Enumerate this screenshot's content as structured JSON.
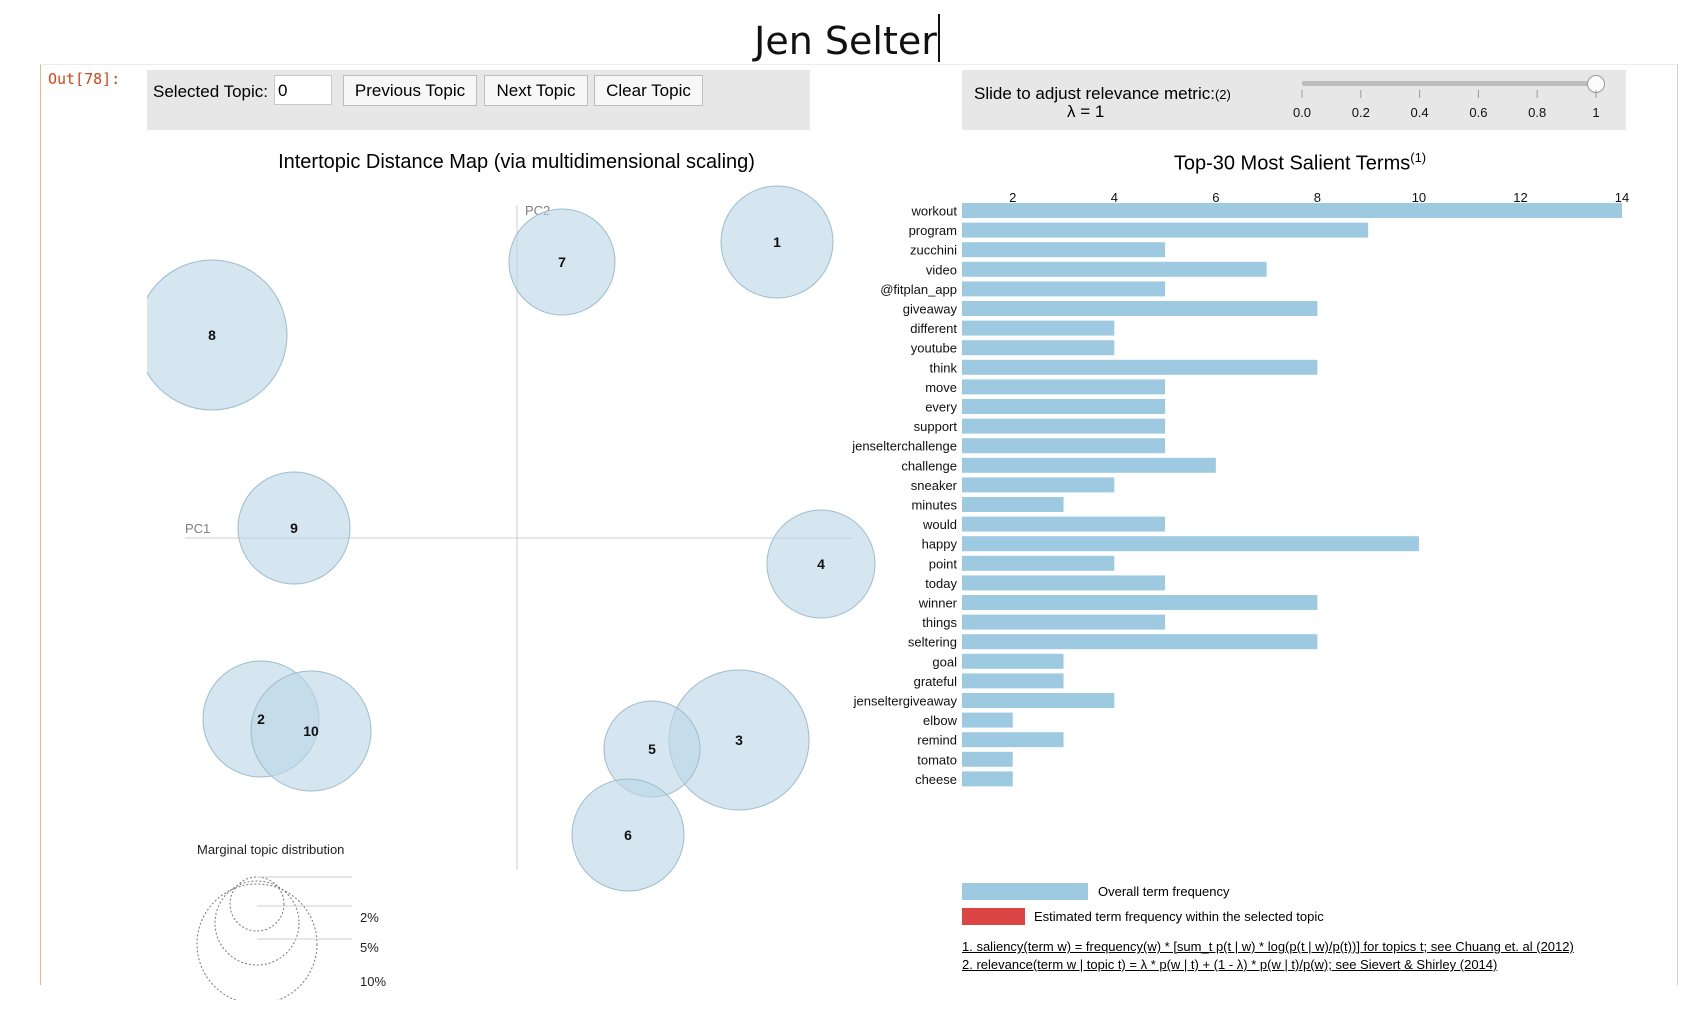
{
  "document_title": "Jen Selter",
  "cell_prompt": "Out[78]:",
  "toolbar": {
    "selected_topic_label": "Selected Topic:",
    "selected_topic_value": "0",
    "previous_label": "Previous Topic",
    "next_label": "Next Topic",
    "clear_label": "Clear Topic"
  },
  "slider": {
    "label": "Slide to adjust relevance metric:",
    "footnote_marker": "(2)",
    "lambda_text": "λ = 1",
    "value": 1,
    "ticks": [
      "0.0",
      "0.2",
      "0.4",
      "0.6",
      "0.8",
      "1"
    ]
  },
  "map": {
    "title": "Intertopic Distance Map (via multidimensional scaling)",
    "pc1_label": "PC1",
    "pc2_label": "PC2",
    "topics": [
      "1",
      "2",
      "3",
      "4",
      "5",
      "6",
      "7",
      "8",
      "9",
      "10"
    ],
    "legend_title": "Marginal topic distribution",
    "legend_labels": [
      "2%",
      "5%",
      "10%"
    ]
  },
  "bars": {
    "title": "Top-30 Most Salient Terms",
    "title_note": "(1)",
    "axis_ticks": [
      "2",
      "4",
      "6",
      "8",
      "10",
      "12",
      "14"
    ],
    "legend_overall": "Overall term frequency",
    "legend_selected": "Estimated term frequency within the selected topic",
    "footnote1": "1. saliency(term w) = frequency(w) * [sum_t p(t | w) * log(p(t | w)/p(t))] for topics t; see Chuang et. al (2012)",
    "footnote2": "2. relevance(term w | topic t) = λ * p(w | t) + (1 - λ) * p(w | t)/p(w); see Sievert & Shirley (2014)"
  },
  "colors": {
    "bar": "#9ecae1",
    "selected_bar": "#dd4444",
    "circle": "#bcd6e6"
  },
  "chart_data": {
    "type": "bar",
    "orientation": "horizontal",
    "title": "Top-30 Most Salient Terms",
    "categories": [
      "workout",
      "program",
      "zucchini",
      "video",
      "@fitplan_app",
      "giveaway",
      "different",
      "youtube",
      "think",
      "move",
      "every",
      "support",
      "jenselterchallenge",
      "challenge",
      "sneaker",
      "minutes",
      "would",
      "happy",
      "point",
      "today",
      "winner",
      "things",
      "seltering",
      "goal",
      "grateful",
      "jenseltergiveaway",
      "elbow",
      "remind",
      "tomato",
      "cheese"
    ],
    "values": [
      14,
      9,
      5,
      7,
      5,
      8,
      4,
      4,
      8,
      5,
      5,
      5,
      5,
      6,
      4,
      3,
      5,
      10,
      4,
      5,
      8,
      5,
      8,
      3,
      3,
      4,
      2,
      3,
      2,
      2
    ],
    "xlim": [
      1,
      14
    ],
    "series": [
      {
        "name": "Overall term frequency",
        "values": [
          14,
          9,
          5,
          7,
          5,
          8,
          4,
          4,
          8,
          5,
          5,
          5,
          5,
          6,
          4,
          3,
          5,
          10,
          4,
          5,
          8,
          5,
          8,
          3,
          3,
          4,
          2,
          3,
          2,
          2
        ]
      }
    ]
  }
}
